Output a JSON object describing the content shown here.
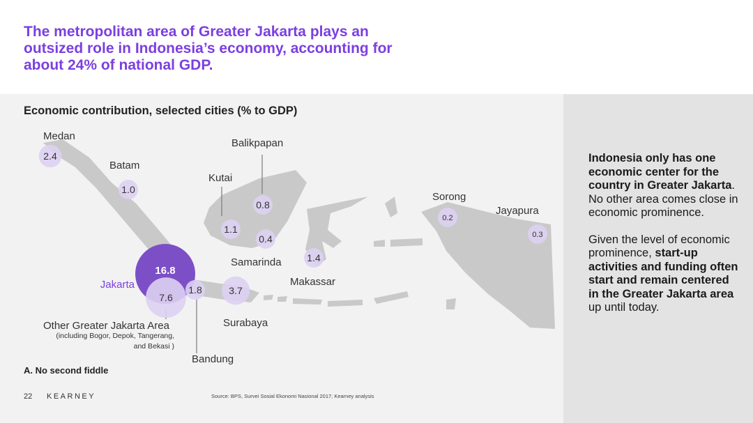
{
  "headline": "The metropolitan area of Greater Jakarta plays an outsized role in Indonesia’s economy, accounting for about 24% of national GDP.",
  "colors": {
    "accent": "#7b3fe0",
    "bubble_light": "#ddd0f2",
    "bubble_dark": "#7d4fc7",
    "map_land": "#c9c9c9",
    "panel_bg": "#f2f2f2",
    "side_bg": "#e3e3e3"
  },
  "chart_data": {
    "type": "bubble-map",
    "title": "Economic contribution, selected cities (% to GDP)",
    "unit": "% to GDP",
    "points": [
      {
        "city": "Medan",
        "value": "2.4"
      },
      {
        "city": "Batam",
        "value": "1.0"
      },
      {
        "city": "Balikpapan",
        "value": "0.8"
      },
      {
        "city": "Kutai",
        "value": "1.1"
      },
      {
        "city": "Samarinda",
        "value": "0.4"
      },
      {
        "city": "Sorong",
        "value": "0.2"
      },
      {
        "city": "Jayapura",
        "value": "0.3"
      },
      {
        "city": "Makassar",
        "value": "1.4"
      },
      {
        "city": "Jakarta",
        "value": "16.8"
      },
      {
        "city": "Other Greater Jakarta Area",
        "value": "7.6"
      },
      {
        "city": "Bandung",
        "value": "1.8"
      },
      {
        "city": "Surabaya",
        "value": "3.7"
      }
    ],
    "other_area_note": "(including Bogor, Depok, Tangerang, and Bekasi )"
  },
  "subtitle": "A. No second fiddle",
  "footer": {
    "page": "22",
    "brand": "KEARNEY",
    "source": "Source: BPS, Survei Sosial Ekonomi Nasional 2017; Kearney analysis"
  },
  "side": {
    "p1_bold": "Indonesia only has one economic center for the country in Greater Jakarta",
    "p1_rest": ". No other area comes close in economic prominence.",
    "p2_start": "Given the level of economic prominence, ",
    "p2_bold": "start-up activities and funding often start and remain centered in the Greater Jakarta area",
    "p2_end": " up until today."
  }
}
